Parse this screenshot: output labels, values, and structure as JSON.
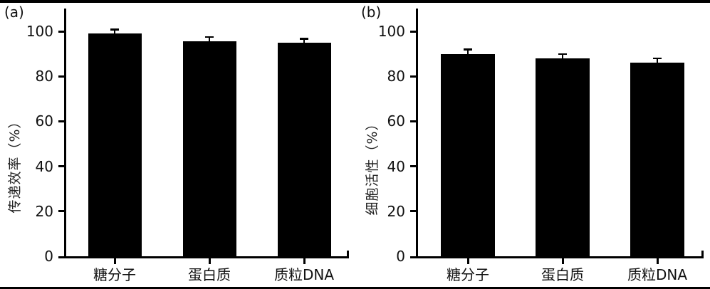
{
  "figure": {
    "background": "#ffffff",
    "frame_color": "#000000",
    "ink_color": "#000000"
  },
  "chart_data": [
    {
      "type": "bar",
      "panel_label": "(a)",
      "title": "",
      "xlabel": "",
      "ylabel": "传递效率（%）",
      "categories": [
        "糖分子",
        "蛋白质",
        "质粒DNA"
      ],
      "values": [
        99,
        95.5,
        95
      ],
      "errors": [
        1.8,
        2,
        1.8
      ],
      "yticks": [
        0,
        20,
        40,
        60,
        80,
        100
      ],
      "ylim": [
        0,
        110
      ],
      "bar_color": "#000000",
      "error_bars": true,
      "grid": false,
      "legend": "none"
    },
    {
      "type": "bar",
      "panel_label": "(b)",
      "title": "",
      "xlabel": "",
      "ylabel": "细胞活性（%）",
      "categories": [
        "糖分子",
        "蛋白质",
        "质粒DNA"
      ],
      "values": [
        90,
        88,
        86
      ],
      "errors": [
        2,
        2,
        2
      ],
      "yticks": [
        0,
        20,
        40,
        60,
        80,
        100
      ],
      "ylim": [
        0,
        110
      ],
      "bar_color": "#000000",
      "error_bars": true,
      "grid": false,
      "legend": "none"
    }
  ]
}
